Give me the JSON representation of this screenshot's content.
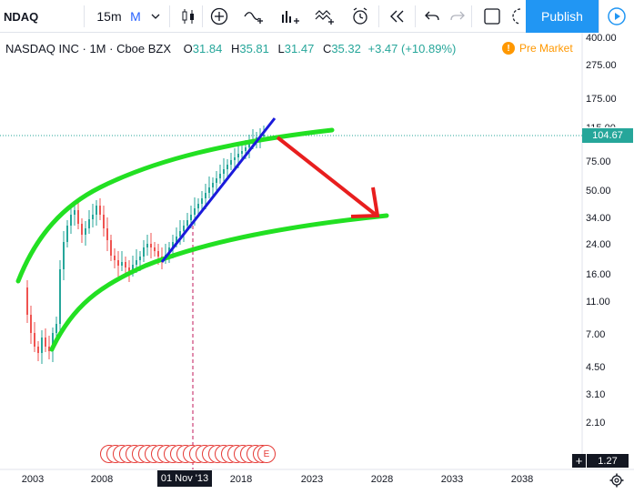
{
  "toolbar": {
    "symbol": "NDAQ",
    "interval": "15m",
    "interval_alt": "M",
    "publish_label": "Publish",
    "icons": [
      "chevron-down-icon",
      "candles-icon",
      "plus-circle-icon",
      "compare-icon",
      "indicators-icon",
      "templates-icon",
      "alert-icon",
      "replay-icon",
      "undo-icon",
      "redo-icon",
      "layout-icon",
      "screenshot-icon",
      "play-icon"
    ]
  },
  "legend": {
    "name": "NASDAQ INC · 1M · Cboe BZX",
    "open_key": "O",
    "open": "31.84",
    "high_key": "H",
    "high": "35.81",
    "low_key": "L",
    "low": "31.47",
    "close_key": "C",
    "close": "35.32",
    "change": "+3.47 (+10.89%)",
    "market_status": "Pre Market"
  },
  "price_axis": {
    "labels": [
      "400.00",
      "275.00",
      "175.00",
      "75.00",
      "50.00",
      "34.00",
      "24.00",
      "16.00",
      "11.00",
      "7.00",
      "4.50",
      "3.10",
      "2.10"
    ],
    "last_price": "104.67",
    "last_price_color": "#26a69a",
    "ratio": "1.27"
  },
  "time_axis": {
    "labels": [
      "2003",
      "2008",
      "2018",
      "2023",
      "2028",
      "2033",
      "2038"
    ],
    "crosshair_date": "01 Nov '13"
  },
  "earnings": {
    "marker_label": "E"
  },
  "colors": {
    "channel": "#22e022",
    "trend": "#1a1adb",
    "arrow": "#e81e1e",
    "candle_up": "#26a69a",
    "candle_down": "#ef5350"
  }
}
